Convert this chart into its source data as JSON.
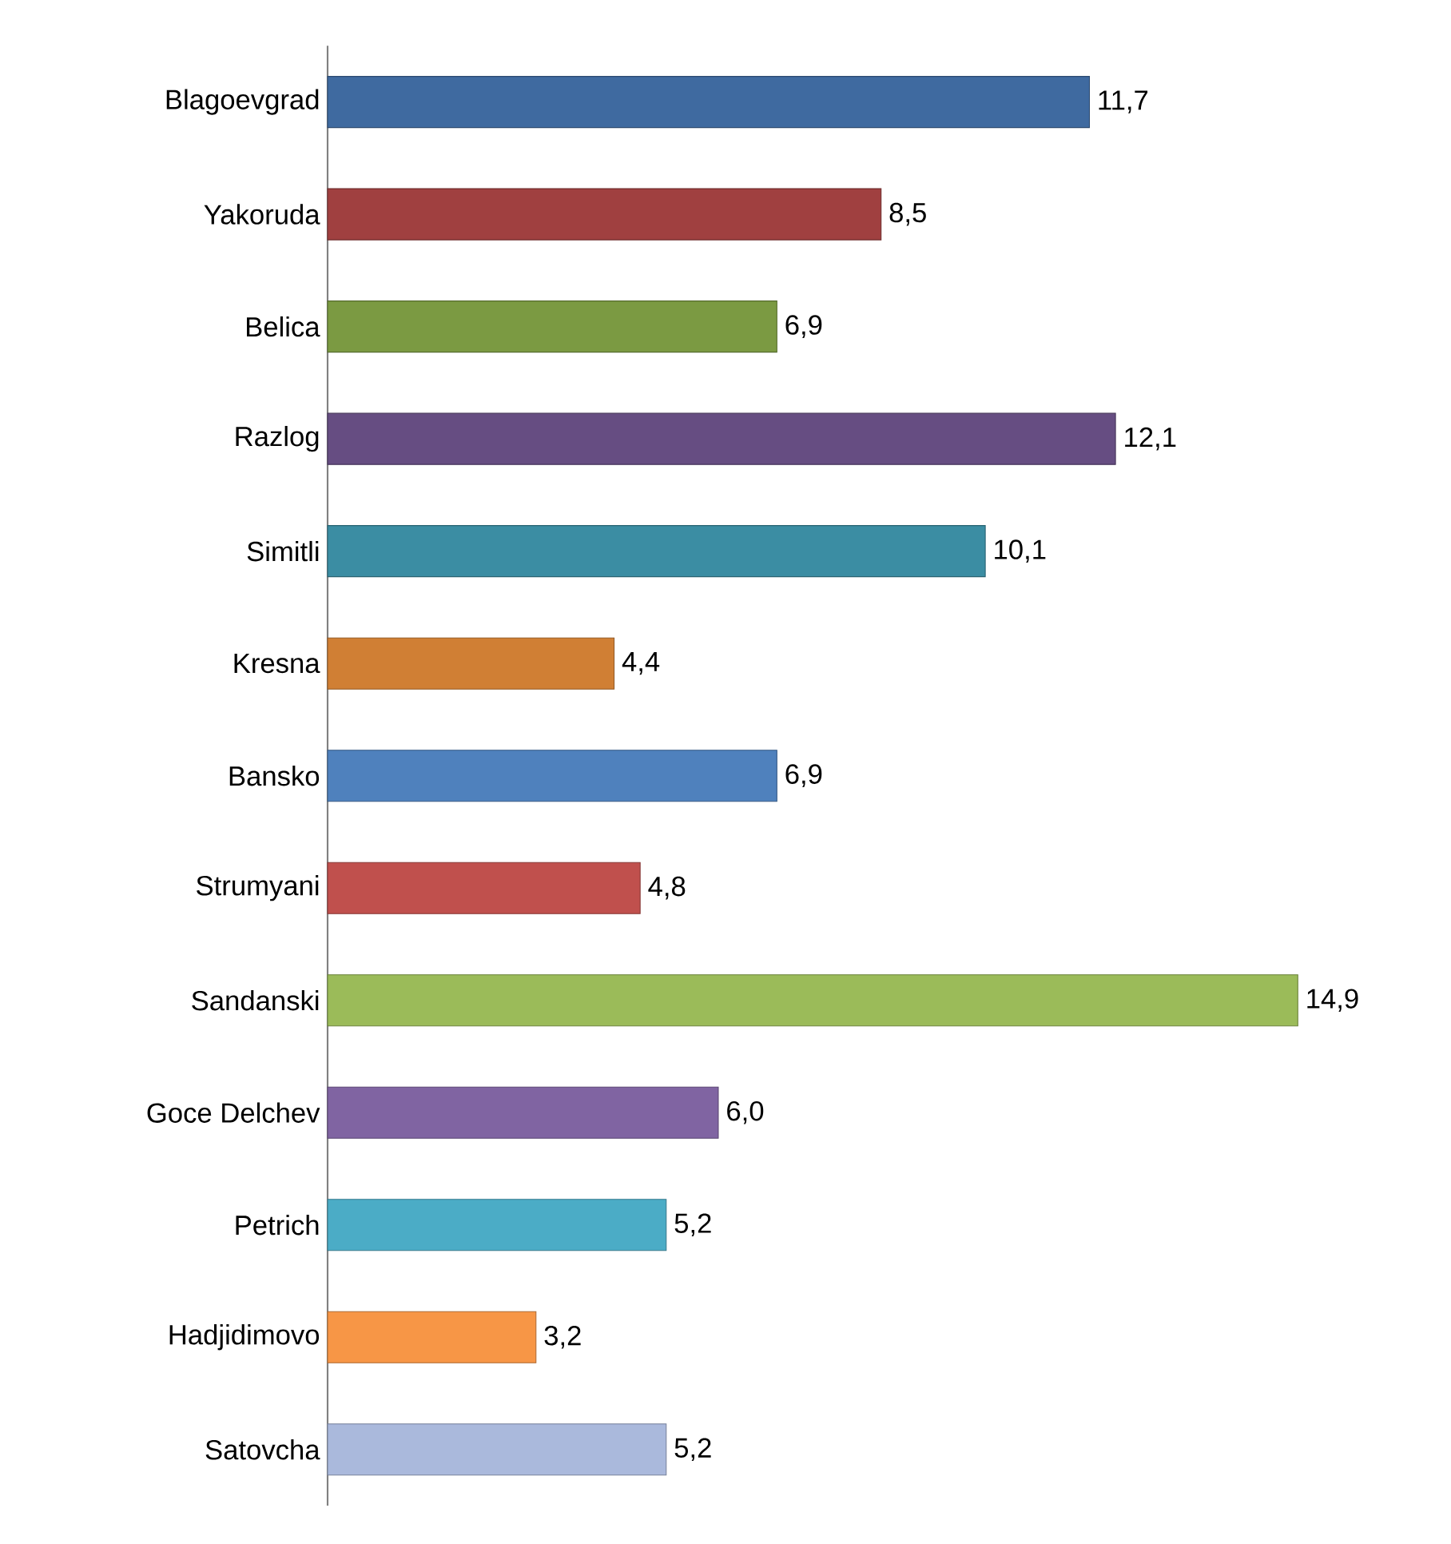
{
  "chart_data": {
    "type": "bar",
    "orientation": "horizontal",
    "categories": [
      "Blagoevgrad",
      "Yakoruda",
      "Belica",
      "Razlog",
      "Simitli",
      "Kresna",
      "Bansko",
      "Strumyani",
      "Sandanski",
      "Goce Delchev",
      "Petrich",
      "Hadjidimovo",
      "Satovcha"
    ],
    "values": [
      11.7,
      8.5,
      6.9,
      12.1,
      10.1,
      4.4,
      6.9,
      4.8,
      14.9,
      6.0,
      5.2,
      3.2,
      5.2
    ],
    "value_labels": [
      "11,7",
      "8,5",
      "6,9",
      "12,1",
      "10,1",
      "4,4",
      "6,9",
      "4,8",
      "14,9",
      "6,0",
      "5,2",
      "3,2",
      "5,2"
    ],
    "colors": [
      "#3f6aa0",
      "#a04040",
      "#7b9a42",
      "#664d82",
      "#3b8da3",
      "#d07f34",
      "#4f81bd",
      "#c0504d",
      "#9bbb59",
      "#8064a2",
      "#4bacc6",
      "#f79646",
      "#aab9dc"
    ],
    "grid": false
  }
}
